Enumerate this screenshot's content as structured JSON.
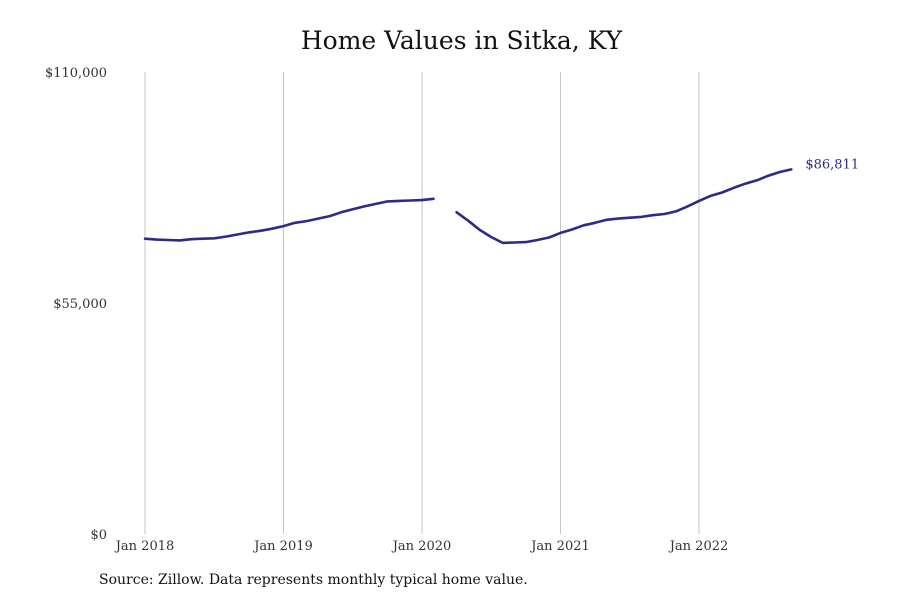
{
  "chart_data": {
    "type": "line",
    "title": "Home Values in Sitka, KY",
    "xlabel": "",
    "ylabel": "",
    "source_note": "Source: Zillow. Data represents monthly typical home value.",
    "ylim": [
      0,
      110000
    ],
    "yticks": [
      {
        "value": 0,
        "label": "$0"
      },
      {
        "value": 55000,
        "label": "$55,000"
      },
      {
        "value": 110000,
        "label": "$110,000"
      }
    ],
    "xticks": [
      {
        "date": "2018-01",
        "label": "Jan 2018"
      },
      {
        "date": "2019-01",
        "label": "Jan 2019"
      },
      {
        "date": "2020-01",
        "label": "Jan 2020"
      },
      {
        "date": "2021-01",
        "label": "Jan 2021"
      },
      {
        "date": "2022-01",
        "label": "Jan 2022"
      }
    ],
    "vertical_gridlines": true,
    "line_color": "#2e2a8a",
    "end_label": "$86,811",
    "series": [
      {
        "name": "",
        "segments": [
          [
            {
              "x": "2018-01",
              "y": 70300
            },
            {
              "x": "2018-02",
              "y": 70100
            },
            {
              "x": "2018-03",
              "y": 70000
            },
            {
              "x": "2018-04",
              "y": 69900
            },
            {
              "x": "2018-05",
              "y": 70200
            },
            {
              "x": "2018-06",
              "y": 70300
            },
            {
              "x": "2018-07",
              "y": 70400
            },
            {
              "x": "2018-08",
              "y": 70800
            },
            {
              "x": "2018-09",
              "y": 71300
            },
            {
              "x": "2018-10",
              "y": 71800
            },
            {
              "x": "2018-11",
              "y": 72200
            },
            {
              "x": "2018-12",
              "y": 72700
            },
            {
              "x": "2019-01",
              "y": 73300
            },
            {
              "x": "2019-02",
              "y": 74100
            },
            {
              "x": "2019-03",
              "y": 74500
            },
            {
              "x": "2019-04",
              "y": 75100
            },
            {
              "x": "2019-05",
              "y": 75700
            },
            {
              "x": "2019-06",
              "y": 76600
            },
            {
              "x": "2019-07",
              "y": 77300
            },
            {
              "x": "2019-08",
              "y": 78000
            },
            {
              "x": "2019-09",
              "y": 78600
            },
            {
              "x": "2019-10",
              "y": 79200
            },
            {
              "x": "2019-11",
              "y": 79300
            },
            {
              "x": "2019-12",
              "y": 79400
            },
            {
              "x": "2020-01",
              "y": 79500
            },
            {
              "x": "2020-02",
              "y": 79800
            }
          ],
          [
            {
              "x": "2020-04",
              "y": 76600
            },
            {
              "x": "2020-05",
              "y": 74600
            },
            {
              "x": "2020-06",
              "y": 72400
            },
            {
              "x": "2020-07",
              "y": 70700
            },
            {
              "x": "2020-08",
              "y": 69300
            },
            {
              "x": "2020-09",
              "y": 69400
            },
            {
              "x": "2020-10",
              "y": 69500
            },
            {
              "x": "2020-11",
              "y": 70000
            },
            {
              "x": "2020-12",
              "y": 70600
            },
            {
              "x": "2021-01",
              "y": 71700
            },
            {
              "x": "2021-02",
              "y": 72500
            },
            {
              "x": "2021-03",
              "y": 73500
            },
            {
              "x": "2021-04",
              "y": 74100
            },
            {
              "x": "2021-05",
              "y": 74800
            },
            {
              "x": "2021-06",
              "y": 75100
            },
            {
              "x": "2021-07",
              "y": 75300
            },
            {
              "x": "2021-08",
              "y": 75500
            },
            {
              "x": "2021-09",
              "y": 75900
            },
            {
              "x": "2021-10",
              "y": 76200
            },
            {
              "x": "2021-11",
              "y": 76800
            },
            {
              "x": "2021-12",
              "y": 78000
            },
            {
              "x": "2022-01",
              "y": 79300
            },
            {
              "x": "2022-02",
              "y": 80500
            },
            {
              "x": "2022-03",
              "y": 81300
            },
            {
              "x": "2022-04",
              "y": 82400
            },
            {
              "x": "2022-05",
              "y": 83400
            },
            {
              "x": "2022-06",
              "y": 84200
            },
            {
              "x": "2022-07",
              "y": 85300
            },
            {
              "x": "2022-08",
              "y": 86200
            },
            {
              "x": "2022-09",
              "y": 86811
            }
          ]
        ]
      }
    ]
  }
}
